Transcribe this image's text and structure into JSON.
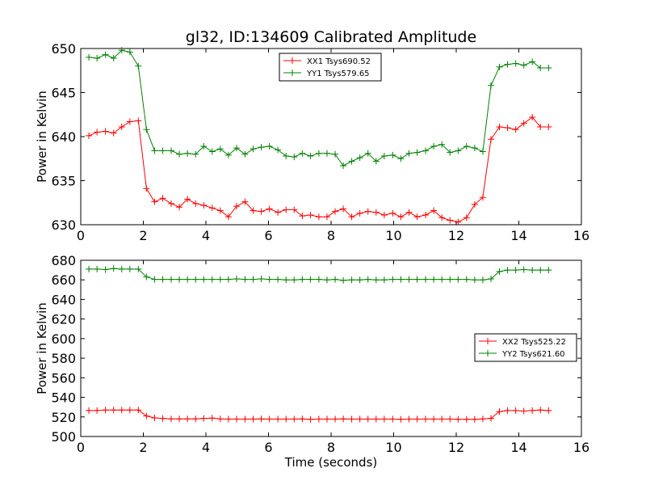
{
  "chart_data": [
    {
      "type": "line",
      "title": "gl32, ID:134609 Calibrated Amplitude",
      "xlabel": "",
      "ylabel": "Power in Kelvin",
      "xlim": [
        0,
        16
      ],
      "ylim": [
        630,
        650
      ],
      "xticks": [
        0,
        2,
        4,
        6,
        8,
        10,
        12,
        14,
        16
      ],
      "yticks": [
        630,
        635,
        640,
        645,
        650
      ],
      "grid": false,
      "legend_position": "top-center",
      "x": [
        0.26,
        0.52,
        0.79,
        1.05,
        1.31,
        1.57,
        1.84,
        2.1,
        2.36,
        2.62,
        2.89,
        3.15,
        3.41,
        3.67,
        3.93,
        4.2,
        4.46,
        4.72,
        4.98,
        5.25,
        5.51,
        5.77,
        6.03,
        6.3,
        6.56,
        6.82,
        7.08,
        7.34,
        7.61,
        7.87,
        8.13,
        8.39,
        8.66,
        8.92,
        9.18,
        9.44,
        9.7,
        9.97,
        10.23,
        10.49,
        10.75,
        11.02,
        11.28,
        11.54,
        11.8,
        12.06,
        12.33,
        12.59,
        12.85,
        13.11,
        13.38,
        13.64,
        13.9,
        14.16,
        14.43,
        14.69,
        14.95
      ],
      "series": [
        {
          "name": "XX1 Tsys690.52",
          "color": "#ff0000",
          "values": [
            640.1,
            640.5,
            640.6,
            640.4,
            641.1,
            641.7,
            641.8,
            634.1,
            632.6,
            633.0,
            632.4,
            632.0,
            632.9,
            632.4,
            632.2,
            631.9,
            631.6,
            630.9,
            632.1,
            632.6,
            631.6,
            631.5,
            631.8,
            631.4,
            631.7,
            631.7,
            631.0,
            631.1,
            630.9,
            630.9,
            631.5,
            631.8,
            630.9,
            631.3,
            631.5,
            631.4,
            631.1,
            631.3,
            630.9,
            631.4,
            630.9,
            631.1,
            631.6,
            630.8,
            630.5,
            630.3,
            630.8,
            632.3,
            633.1,
            639.7,
            641.1,
            641.0,
            640.8,
            641.5,
            642.2,
            641.1,
            641.1
          ]
        },
        {
          "name": "YY1 Tsys579.65",
          "color": "#008000",
          "values": [
            649.0,
            648.9,
            649.3,
            648.9,
            649.8,
            649.6,
            648.0,
            640.8,
            638.4,
            638.4,
            638.4,
            638.0,
            638.1,
            638.0,
            638.9,
            638.3,
            638.6,
            637.9,
            638.7,
            638.0,
            638.6,
            638.8,
            638.9,
            638.5,
            637.8,
            637.7,
            638.1,
            637.8,
            638.1,
            638.1,
            638.0,
            636.7,
            637.2,
            637.6,
            638.1,
            637.2,
            637.8,
            637.9,
            637.5,
            638.1,
            638.2,
            638.4,
            638.9,
            639.1,
            638.2,
            638.4,
            638.9,
            638.7,
            638.3,
            645.8,
            647.9,
            648.2,
            648.3,
            648.1,
            648.5,
            647.8,
            647.8
          ]
        }
      ]
    },
    {
      "type": "line",
      "title": "",
      "xlabel": "Time (seconds)",
      "ylabel": "Power in Kelvin",
      "xlim": [
        0,
        16
      ],
      "ylim": [
        500,
        680
      ],
      "xticks": [
        0,
        2,
        4,
        6,
        8,
        10,
        12,
        14,
        16
      ],
      "yticks": [
        500,
        520,
        540,
        560,
        580,
        600,
        620,
        640,
        660,
        680
      ],
      "grid": false,
      "legend_position": "center-right",
      "x": [
        0.26,
        0.52,
        0.79,
        1.05,
        1.31,
        1.57,
        1.84,
        2.1,
        2.36,
        2.62,
        2.89,
        3.15,
        3.41,
        3.67,
        3.93,
        4.2,
        4.46,
        4.72,
        4.98,
        5.25,
        5.51,
        5.77,
        6.03,
        6.3,
        6.56,
        6.82,
        7.08,
        7.34,
        7.61,
        7.87,
        8.13,
        8.39,
        8.66,
        8.92,
        9.18,
        9.44,
        9.7,
        9.97,
        10.23,
        10.49,
        10.75,
        11.02,
        11.28,
        11.54,
        11.8,
        12.06,
        12.33,
        12.59,
        12.85,
        13.11,
        13.38,
        13.64,
        13.9,
        14.16,
        14.43,
        14.69,
        14.95
      ],
      "series": [
        {
          "name": "XX2 Tsys525.22",
          "color": "#ff0000",
          "values": [
            526.5,
            526.5,
            527.0,
            527.0,
            527.0,
            527.0,
            527.0,
            521.0,
            519.0,
            518.5,
            518.0,
            518.0,
            518.0,
            518.0,
            518.5,
            518.8,
            518.0,
            517.8,
            517.8,
            517.8,
            517.8,
            518.0,
            517.8,
            517.8,
            517.8,
            517.8,
            518.0,
            517.5,
            517.8,
            517.8,
            517.8,
            518.0,
            517.8,
            517.8,
            517.8,
            517.8,
            517.8,
            517.8,
            517.5,
            517.8,
            517.8,
            517.8,
            517.8,
            517.8,
            517.8,
            517.5,
            517.5,
            517.5,
            518.0,
            518.5,
            525.5,
            526.5,
            526.5,
            526.0,
            526.5,
            527.0,
            526.5
          ]
        },
        {
          "name": "YY2 Tsys621.60",
          "color": "#008000",
          "values": [
            671.0,
            671.0,
            670.5,
            671.5,
            671.0,
            671.0,
            671.0,
            663.0,
            660.5,
            660.5,
            660.5,
            660.5,
            660.5,
            660.5,
            660.5,
            660.5,
            660.5,
            660.5,
            661.0,
            660.5,
            660.5,
            661.0,
            660.5,
            660.5,
            660.0,
            660.0,
            660.5,
            660.5,
            660.5,
            660.0,
            660.5,
            659.5,
            660.0,
            660.0,
            660.5,
            660.0,
            660.0,
            660.5,
            660.5,
            660.5,
            660.5,
            660.5,
            660.5,
            660.5,
            660.5,
            660.5,
            660.5,
            660.0,
            660.0,
            661.0,
            668.5,
            670.0,
            670.0,
            670.5,
            670.0,
            670.0,
            670.0
          ]
        }
      ]
    }
  ]
}
